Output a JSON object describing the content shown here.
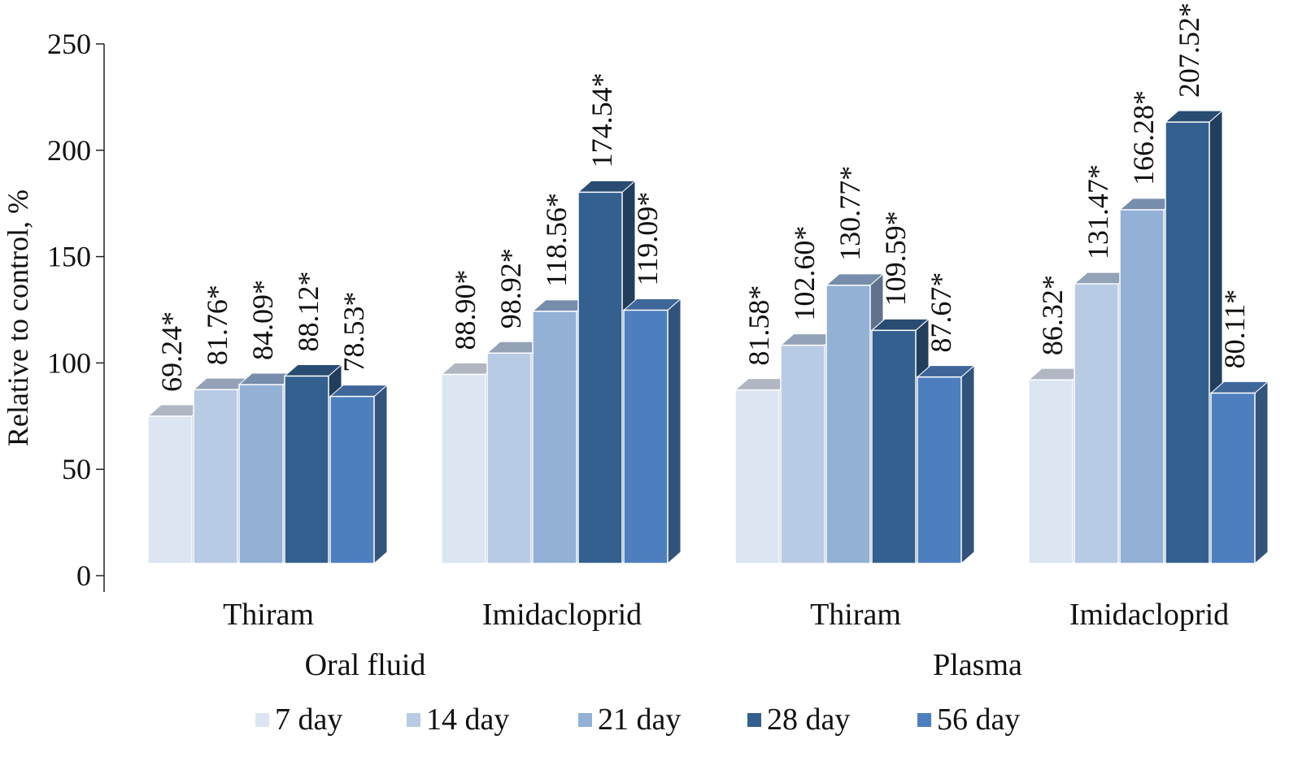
{
  "chart_data": {
    "type": "bar",
    "ylabel": "Relative to control, %",
    "xlabel": "",
    "ylim": [
      0,
      250
    ],
    "y_ticks": [
      0,
      50,
      100,
      150,
      200,
      250
    ],
    "grid": false,
    "legend_position": "bottom",
    "categories": [
      "Thiram",
      "Imidacloprid",
      "Thiram",
      "Imidacloprid"
    ],
    "category_groups": [
      {
        "label": "Oral fluid",
        "categories": [
          0,
          1
        ]
      },
      {
        "label": "Plasma",
        "categories": [
          2,
          3
        ]
      }
    ],
    "series": [
      {
        "name": "7 day",
        "color": "#dce5f2",
        "values": [
          69.24,
          88.9,
          81.58,
          86.32
        ],
        "labels": [
          "69.24*",
          "88.90*",
          "81.58*",
          "86.32*"
        ]
      },
      {
        "name": "14 day",
        "color": "#b8cbe5",
        "values": [
          81.76,
          98.92,
          102.6,
          131.47
        ],
        "labels": [
          "81.76*",
          "98.92*",
          "102.60*",
          "131.47*"
        ]
      },
      {
        "name": "21 day",
        "color": "#93b0d6",
        "values": [
          84.09,
          118.56,
          130.77,
          166.28
        ],
        "labels": [
          "84.09*",
          "118.56*",
          "130.77*",
          "166.28*"
        ]
      },
      {
        "name": "28 day",
        "color": "#33608f",
        "values": [
          88.12,
          174.54,
          109.59,
          207.52
        ],
        "labels": [
          "88.12*",
          "174.54*",
          "109.59*",
          "207.52*"
        ]
      },
      {
        "name": "56 day",
        "color": "#4d7fbf",
        "values": [
          78.53,
          119.09,
          87.67,
          80.11
        ],
        "labels": [
          "78.53*",
          "119.09*",
          "87.67*",
          "80.11*"
        ]
      }
    ]
  }
}
